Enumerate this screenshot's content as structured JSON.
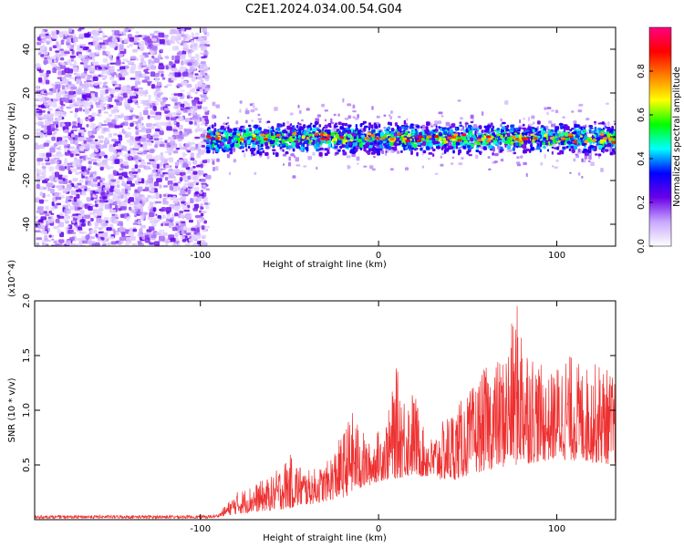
{
  "title": "C2E1.2024.034.00.54.G04",
  "chart_data": [
    {
      "type": "heatmap",
      "xlabel": "Height of straight line (km)",
      "ylabel": "Frequency (Hz)",
      "xlim": [
        -193,
        133
      ],
      "ylim": [
        -50,
        50
      ],
      "x_ticks": [
        -100,
        0,
        100
      ],
      "y_ticks": [
        -40,
        -20,
        0,
        20,
        40
      ],
      "colorbar": {
        "label": "Normalized spectral amplitude",
        "range": [
          0,
          1
        ],
        "ticks": [
          0.0,
          0.2,
          0.4,
          0.6,
          0.8
        ],
        "colors": [
          "#ffffff",
          "#c8a8ff",
          "#6a00e8",
          "#0000ff",
          "#00ffff",
          "#00ff00",
          "#ffff00",
          "#ff8000",
          "#ff0000",
          "#ff0080"
        ]
      },
      "regions": [
        {
          "x_range": [
            -193,
            -97
          ],
          "description": "broadband noise",
          "freq_range": [
            -50,
            50
          ],
          "amplitude": [
            0.05,
            0.25
          ]
        },
        {
          "x_range": [
            -97,
            133
          ],
          "description": "signal band",
          "center_freq": 0,
          "freq_width": [
            -8,
            8
          ],
          "amplitude": [
            0.2,
            0.95
          ]
        }
      ]
    },
    {
      "type": "line",
      "xlabel": "Height of straight line (km)",
      "ylabel": "SNR (10 * v/v)",
      "y_multiplier": "(x10^4)",
      "xlim": [
        -193,
        133
      ],
      "ylim": [
        0,
        2.0
      ],
      "x_ticks": [
        -100,
        0,
        100
      ],
      "y_ticks": [
        0.5,
        1.0,
        1.5,
        2.0
      ],
      "color": "#ee3030",
      "envelope": [
        {
          "x": -193,
          "y": 0.02
        },
        {
          "x": -100,
          "y": 0.03
        },
        {
          "x": -90,
          "y": 0.05
        },
        {
          "x": -80,
          "y": 0.25
        },
        {
          "x": -60,
          "y": 0.4
        },
        {
          "x": -50,
          "y": 0.6
        },
        {
          "x": -40,
          "y": 0.45
        },
        {
          "x": -30,
          "y": 0.5
        },
        {
          "x": -20,
          "y": 0.8
        },
        {
          "x": -15,
          "y": 1.0
        },
        {
          "x": -5,
          "y": 0.7
        },
        {
          "x": 5,
          "y": 0.95
        },
        {
          "x": 10,
          "y": 1.4
        },
        {
          "x": 15,
          "y": 1.15
        },
        {
          "x": 20,
          "y": 1.2
        },
        {
          "x": 25,
          "y": 0.85
        },
        {
          "x": 30,
          "y": 0.75
        },
        {
          "x": 40,
          "y": 1.0
        },
        {
          "x": 50,
          "y": 1.15
        },
        {
          "x": 60,
          "y": 1.4
        },
        {
          "x": 70,
          "y": 1.5
        },
        {
          "x": 78,
          "y": 2.0
        },
        {
          "x": 85,
          "y": 1.6
        },
        {
          "x": 95,
          "y": 1.3
        },
        {
          "x": 105,
          "y": 1.55
        },
        {
          "x": 115,
          "y": 1.4
        },
        {
          "x": 125,
          "y": 1.45
        },
        {
          "x": 133,
          "y": 1.3
        }
      ],
      "baseline": [
        {
          "x": -193,
          "y": 0.0
        },
        {
          "x": -100,
          "y": 0.0
        },
        {
          "x": -80,
          "y": 0.05
        },
        {
          "x": -50,
          "y": 0.1
        },
        {
          "x": -20,
          "y": 0.2
        },
        {
          "x": 0,
          "y": 0.35
        },
        {
          "x": 20,
          "y": 0.4
        },
        {
          "x": 40,
          "y": 0.35
        },
        {
          "x": 60,
          "y": 0.45
        },
        {
          "x": 80,
          "y": 0.5
        },
        {
          "x": 100,
          "y": 0.55
        },
        {
          "x": 133,
          "y": 0.5
        }
      ]
    }
  ]
}
